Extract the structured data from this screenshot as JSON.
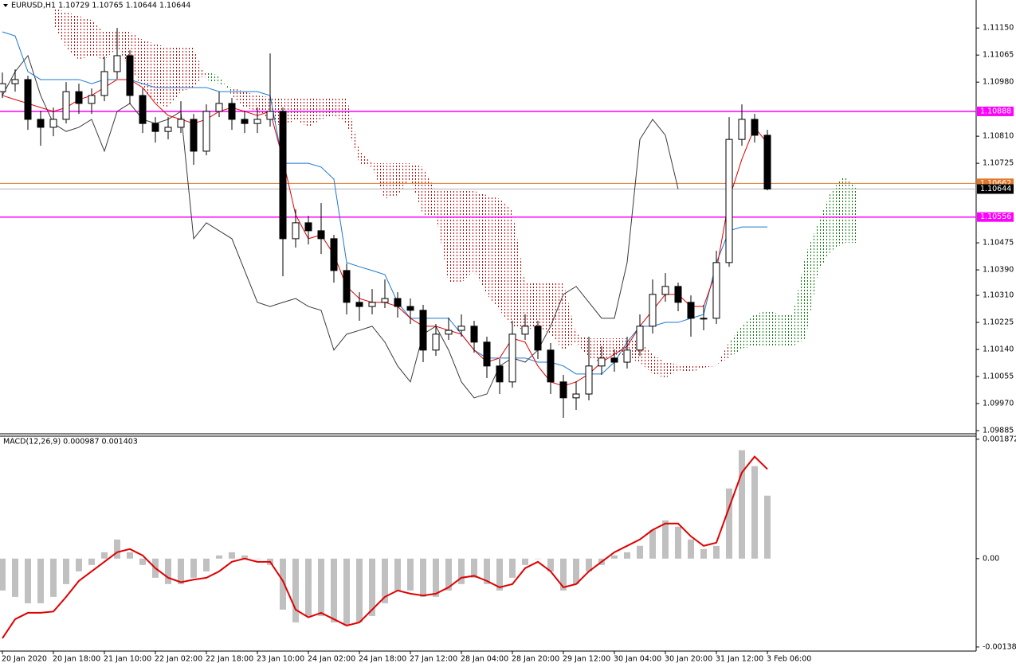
{
  "chart_data": [
    {
      "type": "candlestick",
      "title": "EURUSD,H1  1.10729 1.10765 1.10644 1.10644",
      "categories": [
        "20 Jan 2020",
        null,
        null,
        null,
        "20 Jan 18:00",
        null,
        null,
        null,
        "21 Jan 10:00",
        null,
        null,
        null,
        "22 Jan 02:00",
        null,
        null,
        null,
        "22 Jan 18:00",
        null,
        null,
        null,
        "23 Jan 10:00",
        null,
        null,
        null,
        "24 Jan 02:00",
        null,
        null,
        null,
        "24 Jan 18:00",
        null,
        null,
        null,
        "27 Jan 12:00",
        null,
        null,
        null,
        "28 Jan 04:00",
        null,
        null,
        null,
        "28 Jan 20:00",
        null,
        null,
        null,
        "29 Jan 12:00",
        null,
        null,
        null,
        "30 Jan 04:00",
        null,
        null,
        null,
        "30 Jan 20:00",
        null,
        null,
        null,
        "31 Jan 12:00",
        null,
        null,
        null,
        "3 Feb 06:00",
        null,
        null,
        null,
        null,
        null,
        null,
        null
      ],
      "open": [
        1.1095,
        1.10975,
        1.10988,
        1.10863,
        1.10838,
        1.10863,
        1.1095,
        1.10913,
        1.10938,
        1.11013,
        1.11063,
        1.10938,
        1.1085,
        1.10825,
        1.10838,
        1.10863,
        1.10763,
        1.10888,
        1.10913,
        1.10863,
        1.1085,
        1.10863,
        1.10888,
        1.10488,
        1.10538,
        1.10513,
        1.10488,
        1.10388,
        1.10288,
        1.10275,
        1.10288,
        1.103,
        1.10275,
        1.10263,
        1.10138,
        1.10188,
        1.102,
        1.10213,
        1.10163,
        1.10088,
        1.10038,
        1.10188,
        1.10213,
        1.10138,
        1.10038,
        1.09988,
        1.1,
        1.10088,
        1.10113,
        1.101,
        1.10138,
        1.10213,
        1.10313,
        1.10338,
        1.10288,
        1.10238,
        1.10238,
        1.10413,
        1.108,
        1.10863,
        1.10813,
        null,
        null,
        null,
        null,
        null,
        null,
        null
      ],
      "high": [
        1.1101,
        1.1102,
        1.11,
        1.1089,
        1.109,
        1.1098,
        1.10975,
        1.1096,
        1.1106,
        1.1115,
        1.1108,
        1.1096,
        1.1087,
        1.1087,
        1.1092,
        1.1088,
        1.1091,
        1.1095,
        1.1093,
        1.1089,
        1.109,
        1.1107,
        1.109,
        1.1058,
        1.1056,
        1.106,
        1.105,
        1.1041,
        1.1032,
        1.1033,
        1.1036,
        1.1032,
        1.103,
        1.1028,
        1.1022,
        1.1024,
        1.1025,
        1.1023,
        1.1018,
        1.1011,
        1.1023,
        1.1025,
        1.1023,
        1.1016,
        1.1006,
        1.1004,
        1.1018,
        1.1015,
        1.1014,
        1.1018,
        1.1025,
        1.1036,
        1.1038,
        1.1035,
        1.1031,
        1.1028,
        1.1045,
        1.1087,
        1.1091,
        1.1088,
        1.1083,
        null,
        null,
        null,
        null,
        null,
        null,
        null
      ],
      "low": [
        1.1093,
        1.1095,
        1.1083,
        1.1078,
        1.1081,
        1.1085,
        1.1088,
        1.1088,
        1.1092,
        1.1099,
        1.1091,
        1.1082,
        1.1079,
        1.108,
        1.1082,
        1.1072,
        1.1075,
        1.1087,
        1.1083,
        1.1082,
        1.1082,
        1.1084,
        1.1037,
        1.1046,
        1.1047,
        1.1044,
        1.1035,
        1.1025,
        1.1023,
        1.1025,
        1.1027,
        1.1024,
        1.1022,
        1.101,
        1.1012,
        1.1017,
        1.1018,
        1.1013,
        1.1005,
        1.1,
        1.1002,
        1.1017,
        1.1011,
        1.1,
        1.09925,
        1.0995,
        1.0998,
        1.1006,
        1.1007,
        1.1008,
        1.1012,
        1.1019,
        1.1029,
        1.1026,
        1.1018,
        1.102,
        1.1022,
        1.104,
        1.1078,
        1.1079,
        1.1064,
        null,
        null,
        null,
        null,
        null,
        null,
        null
      ],
      "close": [
        1.10975,
        1.10988,
        1.10863,
        1.10838,
        1.10863,
        1.1095,
        1.10913,
        1.10938,
        1.11013,
        1.11063,
        1.10938,
        1.1085,
        1.10825,
        1.10838,
        1.10863,
        1.10763,
        1.10888,
        1.10913,
        1.10863,
        1.1085,
        1.10863,
        1.10888,
        1.10488,
        1.10538,
        1.10513,
        1.10488,
        1.10388,
        1.10288,
        1.10275,
        1.10288,
        1.103,
        1.10275,
        1.10263,
        1.10138,
        1.10188,
        1.102,
        1.10213,
        1.10163,
        1.10088,
        1.10038,
        1.10188,
        1.10213,
        1.10138,
        1.10038,
        1.09988,
        1.1,
        1.10088,
        1.10113,
        1.101,
        1.10138,
        1.10213,
        1.10313,
        1.10338,
        1.10288,
        1.10238,
        1.10238,
        1.10413,
        1.108,
        1.10863,
        1.10813,
        1.10644,
        null,
        null,
        null,
        null,
        null,
        null,
        null
      ],
      "tenkan": [
        1.10938,
        1.10925,
        1.10913,
        1.109,
        1.10888,
        1.109,
        1.10925,
        1.10938,
        1.10963,
        1.10988,
        1.10988,
        1.10963,
        1.10913,
        1.10875,
        1.10863,
        1.1085,
        1.10863,
        1.10888,
        1.109,
        1.10888,
        1.10875,
        1.10888,
        1.10738,
        1.10563,
        1.10488,
        1.105,
        1.10438,
        1.10338,
        1.103,
        1.10288,
        1.10288,
        1.10275,
        1.10238,
        1.10213,
        1.10213,
        1.102,
        1.10188,
        1.10138,
        1.101,
        1.10113,
        1.10175,
        1.10163,
        1.10088,
        1.10038,
        1.10025,
        1.10038,
        1.10063,
        1.101,
        1.10125,
        1.1015,
        1.10213,
        1.10263,
        1.10313,
        1.10313,
        1.10275,
        1.10275,
        1.10388,
        1.10613,
        1.10738,
        1.10838,
        1.10788,
        null,
        null,
        null,
        null,
        null,
        null,
        null
      ],
      "kijun": [
        1.11138,
        1.11125,
        1.11013,
        1.10988,
        1.10988,
        1.10988,
        1.10988,
        1.10975,
        1.10988,
        1.10988,
        1.10988,
        1.10975,
        1.10963,
        1.10963,
        1.10963,
        1.10963,
        1.10963,
        1.1095,
        1.1095,
        1.1095,
        1.1095,
        1.10938,
        1.10725,
        1.10725,
        1.10725,
        1.10713,
        1.10675,
        1.10413,
        1.104,
        1.10388,
        1.10375,
        1.10288,
        1.10238,
        1.10238,
        1.10238,
        1.10238,
        1.10188,
        1.10138,
        1.10113,
        1.10113,
        1.10113,
        1.10113,
        1.101,
        1.101,
        1.10088,
        1.10063,
        1.10063,
        1.10063,
        1.101,
        1.10163,
        1.10213,
        1.10213,
        1.10225,
        1.10225,
        1.10238,
        1.1025,
        1.10413,
        1.10513,
        1.10525,
        1.10525,
        1.10525,
        null,
        null,
        null,
        null,
        null,
        null,
        null
      ],
      "chikou": [
        1.10938,
        1.11013,
        1.11063,
        1.10938,
        1.1085,
        1.10825,
        1.10838,
        1.10863,
        1.10763,
        1.10888,
        1.10913,
        1.10863,
        1.1085,
        1.10863,
        1.10888,
        1.10488,
        1.10538,
        1.10513,
        1.10488,
        1.10388,
        1.10288,
        1.10275,
        1.10288,
        1.103,
        1.10275,
        1.10263,
        1.10138,
        1.10188,
        1.102,
        1.10213,
        1.10163,
        1.10088,
        1.10038,
        1.10188,
        1.10213,
        1.10138,
        1.10038,
        1.09988,
        1.1,
        1.10088,
        1.10113,
        1.101,
        1.10138,
        1.10213,
        1.10313,
        1.10338,
        1.10288,
        1.10238,
        1.10238,
        1.10413,
        1.108,
        1.10863,
        1.10813,
        1.10644,
        null,
        null,
        null,
        null,
        null,
        null,
        null,
        null,
        null,
        null,
        null,
        null,
        null,
        null
      ],
      "span_a": [
        null,
        null,
        null,
        null,
        1.11163,
        1.11088,
        1.1105,
        1.11063,
        1.1105,
        1.11088,
        1.11025,
        1.10963,
        1.10913,
        1.109,
        1.1095,
        1.10963,
        1.11013,
        1.11,
        1.10938,
        1.109,
        1.10888,
        1.10863,
        1.10838,
        1.10863,
        1.10838,
        1.10863,
        1.10875,
        1.1085,
        1.10725,
        1.10713,
        1.10613,
        1.10625,
        1.10675,
        1.10563,
        1.10563,
        1.1035,
        1.1035,
        1.10388,
        1.10313,
        1.10263,
        1.10213,
        1.102,
        1.10213,
        1.10188,
        1.10138,
        1.10163,
        1.10113,
        1.101,
        1.10125,
        1.10113,
        1.101,
        1.10063,
        1.1005,
        1.10075,
        1.10068,
        1.10083,
        1.10088,
        1.10163,
        1.10213,
        1.1025,
        1.10263,
        1.1025,
        1.1025,
        1.10438,
        1.10538,
        1.10638,
        1.10683,
        1.1065
      ],
      "span_b": [
        null,
        null,
        null,
        null,
        1.11213,
        1.112,
        1.11188,
        1.11175,
        1.11138,
        1.11138,
        1.11138,
        1.11113,
        1.111,
        1.11088,
        1.11088,
        1.11088,
        1.10988,
        1.10975,
        1.10963,
        1.1095,
        1.10938,
        1.10933,
        1.10933,
        1.10933,
        1.10933,
        1.10933,
        1.10933,
        1.10933,
        1.10763,
        1.10725,
        1.10725,
        1.10725,
        1.10725,
        1.10713,
        1.10638,
        1.10638,
        1.10638,
        1.10638,
        1.10625,
        1.10613,
        1.10575,
        1.1035,
        1.1035,
        1.1035,
        1.1035,
        1.10188,
        1.10175,
        1.10175,
        1.10175,
        1.10175,
        1.10163,
        1.10125,
        1.101,
        1.10093,
        1.10093,
        1.10093,
        1.10093,
        1.10113,
        1.10143,
        1.1015,
        1.1015,
        1.1015,
        1.1015,
        1.10175,
        1.10388,
        1.1045,
        1.10475,
        1.10475
      ],
      "colors": {
        "tenkan": "#e00000",
        "kijun": "#1e78d0",
        "chikou": "#3a3a3a",
        "cloud_up": "#007a00",
        "cloud_down": "#c00000",
        "bull": "#ffffff",
        "bear": "#000000",
        "wick": "#000000"
      },
      "hlines": [
        {
          "value": 1.10888,
          "color": "#ff00ff",
          "label_bg": "#ff00ff",
          "label_fg": "#ffffff"
        },
        {
          "value": 1.10662,
          "color": "#e0782a",
          "label_bg": "#e0782a",
          "label_fg": "#ffffff"
        },
        {
          "value": 1.10644,
          "color": "#b0b0b0",
          "label_bg": "#000000",
          "label_fg": "#ffffff"
        },
        {
          "value": 1.10556,
          "color": "#ff00ff",
          "label_bg": "#ff00ff",
          "label_fg": "#ffffff"
        }
      ],
      "ylim": [
        1.09875,
        1.11238
      ],
      "yticks": [
        {
          "value": 1.1115,
          "label": "1.11150"
        },
        {
          "value": 1.11065,
          "label": "1.11065"
        },
        {
          "value": 1.1098,
          "label": "1.10980"
        },
        {
          "value": 1.1081,
          "label": "1.10810"
        },
        {
          "value": 1.10725,
          "label": "1.10725"
        },
        {
          "value": 1.10475,
          "label": "1.10475"
        },
        {
          "value": 1.1039,
          "label": "1.10390"
        },
        {
          "value": 1.1031,
          "label": "1.10310"
        },
        {
          "value": 1.10225,
          "label": "1.10225"
        },
        {
          "value": 1.1014,
          "label": "1.10140"
        },
        {
          "value": 1.10055,
          "label": "1.10055"
        },
        {
          "value": 1.0997,
          "label": "1.09970"
        },
        {
          "value": 1.09885,
          "label": "1.09885"
        }
      ],
      "grid": false
    },
    {
      "type": "bar",
      "title": "MACD(12,26,9) 0.000987 0.001403",
      "values": [
        -0.0005,
        -0.0006,
        -0.0007,
        -0.0007,
        -0.0006,
        -0.0004,
        -0.0002,
        -0.0001,
        0.0001,
        0.0003,
        0.0001,
        -0.0001,
        -0.0003,
        -0.0004,
        -0.0004,
        -0.0003,
        -0.0002,
        5e-05,
        0.0001,
        5e-05,
        0,
        -0.0001,
        -0.0008,
        -0.001,
        -0.0009,
        -0.0009,
        -0.001,
        -0.00105,
        -0.001,
        -0.0009,
        -0.0007,
        -0.0005,
        -0.0005,
        -0.0006,
        -0.0006,
        -0.0005,
        -0.0004,
        -0.0003,
        -0.0004,
        -0.0005,
        -0.0003,
        -0.0001,
        0,
        -0.0002,
        -0.0005,
        -0.0004,
        -0.0002,
        -0.0001,
        5e-05,
        0.0001,
        0.0002,
        0.00045,
        0.0006,
        0.0005,
        0.0003,
        0.00015,
        0.0002,
        0.0011,
        0.0017,
        0.00145,
        0.000987
      ],
      "color": "#c0c0c0",
      "signal": [
        -0.00125,
        -0.00095,
        -0.00085,
        -0.00085,
        -0.00083,
        -0.0006,
        -0.00035,
        -0.0002,
        -5e-05,
        0.0001,
        0.00015,
        5e-05,
        -0.00015,
        -0.0003,
        -0.00037,
        -0.00033,
        -0.0003,
        -0.0002,
        -5e-05,
        0,
        -5e-05,
        -5e-05,
        -0.00035,
        -0.0008,
        -0.00092,
        -0.00085,
        -0.00095,
        -0.00105,
        -0.001,
        -0.0008,
        -0.0006,
        -0.0005,
        -0.00055,
        -0.00058,
        -0.00055,
        -0.00045,
        -0.0003,
        -0.00027,
        -0.00035,
        -0.00045,
        -0.0004,
        -0.00015,
        -5e-05,
        -0.0002,
        -0.00045,
        -0.0004,
        -0.0002,
        -5e-05,
        0.0001,
        0.0002,
        0.0003,
        0.00045,
        0.00055,
        0.00055,
        0.00035,
        0.0002,
        0.00025,
        0.0008,
        0.00135,
        0.0016,
        0.001403
      ],
      "signal_color": "#e00000",
      "ylim": [
        -0.00145,
        0.00192
      ],
      "yticks": [
        0.001872,
        {
          "value": 0,
          "label": "0.00"
        },
        -0.001386
      ],
      "grid": false
    }
  ]
}
